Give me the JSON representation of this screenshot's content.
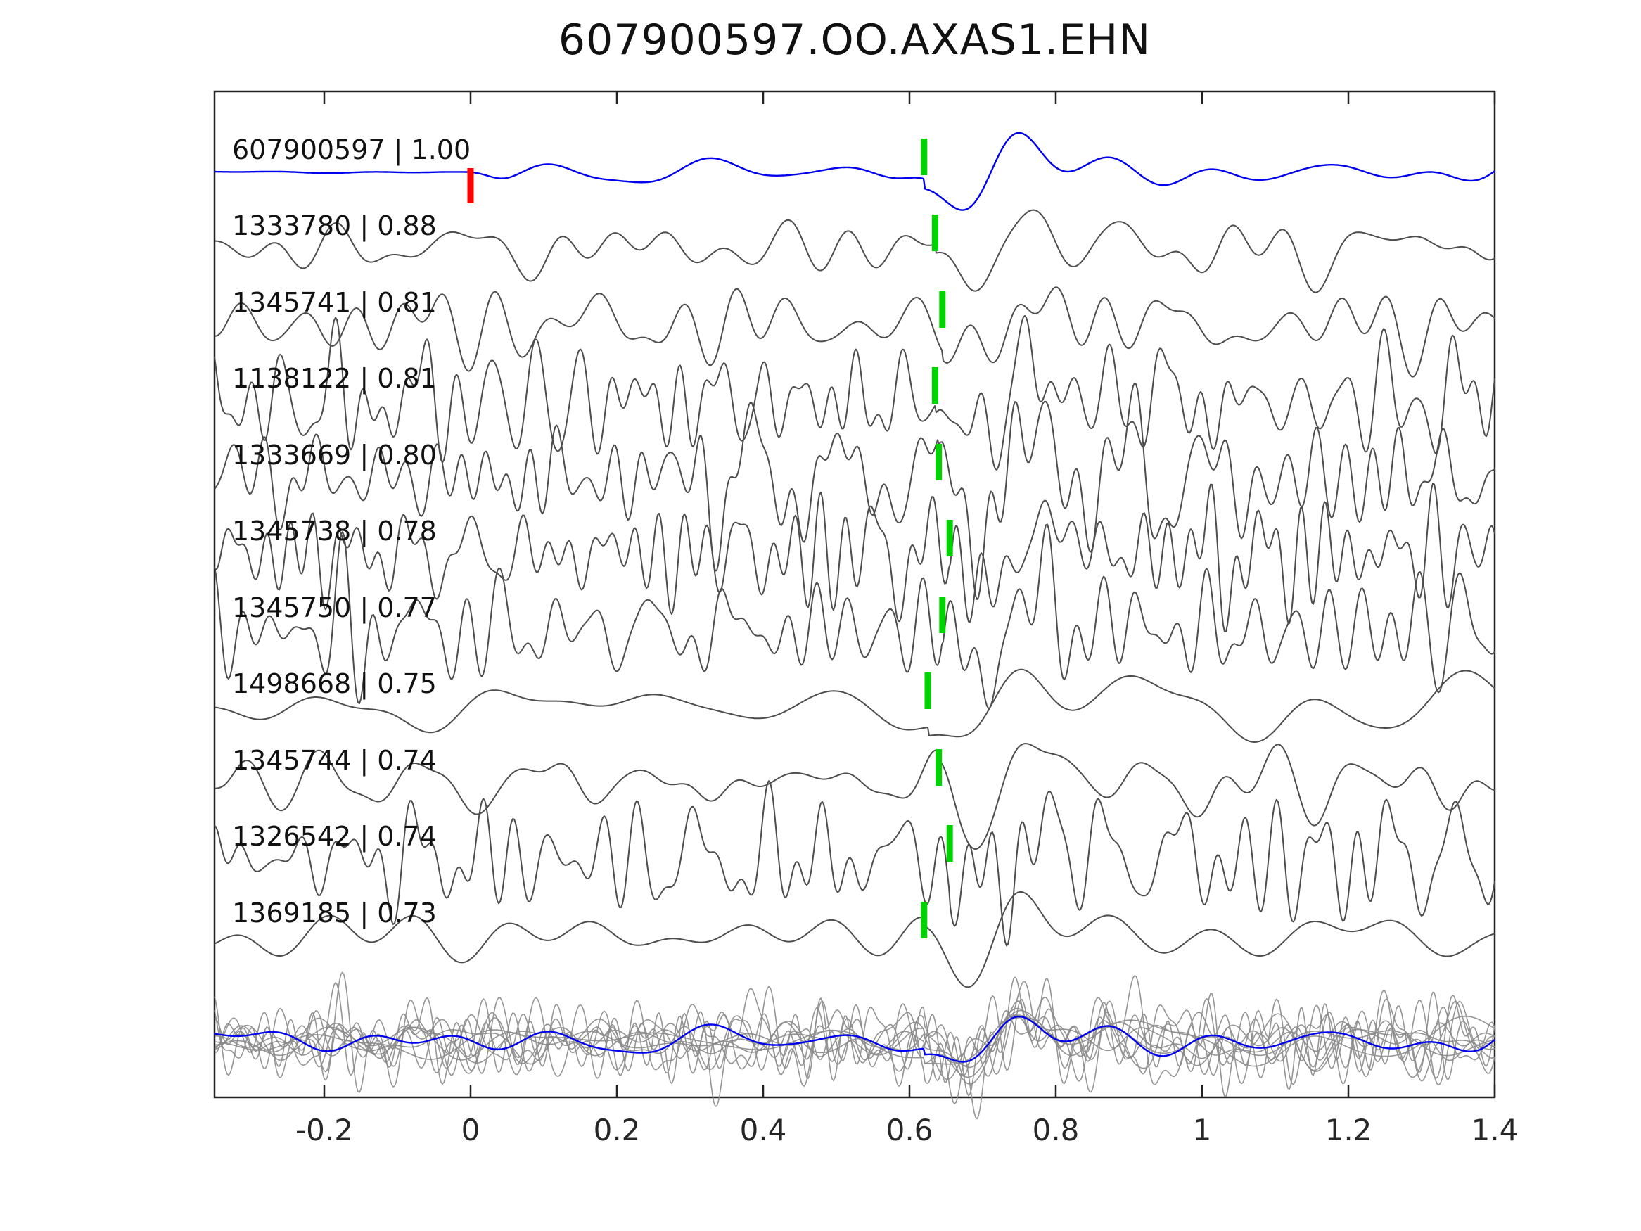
{
  "title": "607900597.OO.AXAS1.EHN",
  "chart_data": {
    "type": "line",
    "title": "607900597.OO.AXAS1.EHN",
    "xlabel": "",
    "ylabel": "",
    "grid": false,
    "legend": "none",
    "xlim": [
      -0.35,
      1.4
    ],
    "x_ticks": [
      -0.2,
      0,
      0.2,
      0.4,
      0.6,
      0.8,
      1,
      1.2,
      1.4
    ],
    "x_tick_labels": [
      "-0.2",
      "0",
      "0.2",
      "0.4",
      "0.6",
      "0.8",
      "1",
      "1.2",
      "1.4"
    ],
    "colors": {
      "reference_trace": "#0000ee",
      "match_trace": "#4d4d4d",
      "overlay_trace": "#8a8a8a",
      "pick_marker": "#00d400",
      "origin_marker": "#ff0000",
      "axis": "#222222"
    },
    "traces": [
      {
        "id": "607900597",
        "correlation": 1.0,
        "label": "607900597 | 1.00",
        "role": "reference",
        "pick_x": 0.62,
        "origin_x": 0.0,
        "noise_level": 0.18,
        "band": "low",
        "seed": 11
      },
      {
        "id": "1333780",
        "correlation": 0.88,
        "label": "1333780 | 0.88",
        "role": "match",
        "pick_x": 0.635,
        "noise_level": 0.3,
        "band": "mid",
        "seed": 22
      },
      {
        "id": "1345741",
        "correlation": 0.81,
        "label": "1345741 | 0.81",
        "role": "match",
        "pick_x": 0.645,
        "noise_level": 0.35,
        "band": "mid",
        "seed": 33
      },
      {
        "id": "1138122",
        "correlation": 0.81,
        "label": "1138122 | 0.81",
        "role": "match",
        "pick_x": 0.635,
        "noise_level": 0.62,
        "band": "high",
        "seed": 44
      },
      {
        "id": "1333669",
        "correlation": 0.8,
        "label": "1333669 | 0.80",
        "role": "match",
        "pick_x": 0.64,
        "noise_level": 0.62,
        "band": "high",
        "seed": 55
      },
      {
        "id": "1345738",
        "correlation": 0.78,
        "label": "1345738 | 0.78",
        "role": "match",
        "pick_x": 0.655,
        "noise_level": 0.58,
        "band": "high",
        "seed": 66
      },
      {
        "id": "1345750",
        "correlation": 0.77,
        "label": "1345750 | 0.77",
        "role": "match",
        "pick_x": 0.645,
        "noise_level": 0.58,
        "band": "high",
        "seed": 77
      },
      {
        "id": "1498668",
        "correlation": 0.75,
        "label": "1498668 | 0.75",
        "role": "match",
        "pick_x": 0.625,
        "noise_level": 0.26,
        "band": "low",
        "seed": 88
      },
      {
        "id": "1345744",
        "correlation": 0.74,
        "label": "1345744 | 0.74",
        "role": "match",
        "pick_x": 0.64,
        "noise_level": 0.34,
        "band": "mid",
        "seed": 99
      },
      {
        "id": "1326542",
        "correlation": 0.74,
        "label": "1326542 | 0.74",
        "role": "match",
        "pick_x": 0.655,
        "noise_level": 0.6,
        "band": "high",
        "seed": 110
      },
      {
        "id": "1369185",
        "correlation": 0.73,
        "label": "1369185 | 0.73",
        "role": "match",
        "pick_x": 0.62,
        "noise_level": 0.26,
        "band": "low",
        "seed": 121
      }
    ],
    "overlay": {
      "align_x": 0.62,
      "includes": "all_traces_superimposed",
      "highlight": "reference_trace"
    }
  }
}
